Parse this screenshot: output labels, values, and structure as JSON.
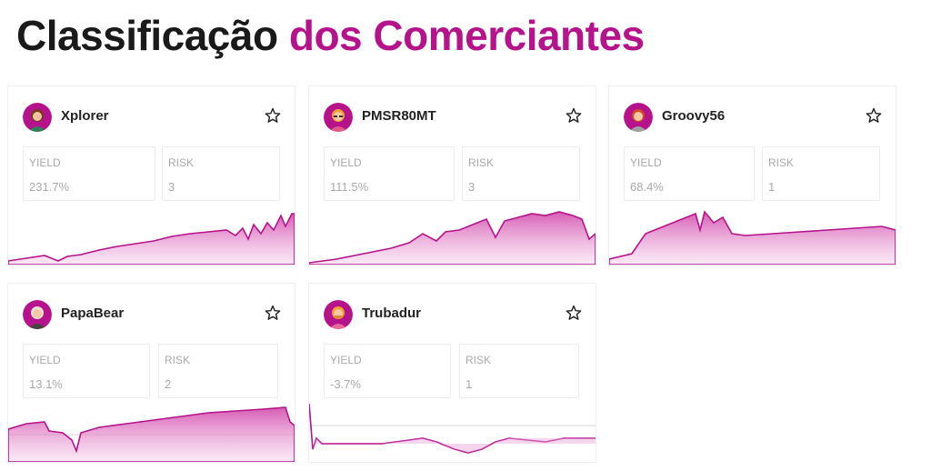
{
  "title": {
    "part1": "Classificação",
    "part2": "dos Comerciantes"
  },
  "colors": {
    "accent": "#b5128b",
    "fill": "#e9a6d8",
    "text": "#1a1a1a",
    "muted": "#a9a9a9"
  },
  "labels": {
    "yield": "YIELD",
    "risk": "RISK"
  },
  "traders": [
    {
      "name": "Xplorer",
      "yield": "231.7%",
      "risk": "3",
      "avatar": "female-avatar-icon"
    },
    {
      "name": "PMSR80MT",
      "yield": "111.5%",
      "risk": "3",
      "avatar": "male-glasses-avatar-icon"
    },
    {
      "name": "Groovy56",
      "yield": "68.4%",
      "risk": "1",
      "avatar": "male-avatar-icon"
    },
    {
      "name": "PapaBear",
      "yield": "13.1%",
      "risk": "2",
      "avatar": "older-male-avatar-icon"
    },
    {
      "name": "Trubadur",
      "yield": "-3.7%",
      "risk": "1",
      "avatar": "male-beard-avatar-icon"
    }
  ]
}
